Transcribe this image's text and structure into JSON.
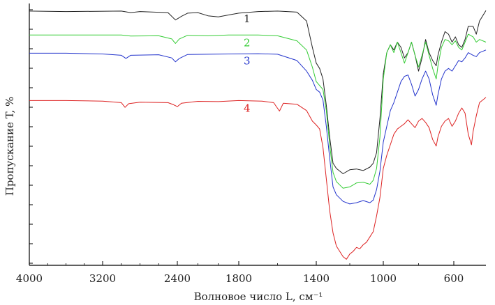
{
  "chart_data": {
    "type": "line",
    "xlabel": "Волновое число L, см⁻¹",
    "ylabel": "Пропускание T, %",
    "x_ticks": [
      "4000",
      "3200",
      "2400",
      "1800",
      "1400",
      "1000",
      "600"
    ],
    "x_tick_values": [
      4000,
      3200,
      2400,
      1800,
      1400,
      1000,
      600
    ],
    "xlim": [
      4000,
      400
    ],
    "ylim": [
      0,
      100
    ],
    "grid": false,
    "legend": "inline labels",
    "series": [
      {
        "name": "1",
        "color": "#222222",
        "points": [
          [
            4000,
            95.8
          ],
          [
            3600,
            95.6
          ],
          [
            3000,
            95.8
          ],
          [
            2900,
            95.2
          ],
          [
            2800,
            95.6
          ],
          [
            2500,
            95.2
          ],
          [
            2420,
            92.4
          ],
          [
            2360,
            93.8
          ],
          [
            2300,
            95.0
          ],
          [
            2200,
            95.2
          ],
          [
            2100,
            94.0
          ],
          [
            2000,
            93.6
          ],
          [
            1900,
            94.3
          ],
          [
            1800,
            95.0
          ],
          [
            1700,
            95.6
          ],
          [
            1600,
            95.8
          ],
          [
            1500,
            95.4
          ],
          [
            1450,
            92.0
          ],
          [
            1420,
            82.0
          ],
          [
            1400,
            76.0
          ],
          [
            1380,
            74.0
          ],
          [
            1360,
            70.0
          ],
          [
            1340,
            60.0
          ],
          [
            1320,
            48.0
          ],
          [
            1300,
            38.0
          ],
          [
            1280,
            36.0
          ],
          [
            1240,
            34.0
          ],
          [
            1200,
            35.5
          ],
          [
            1160,
            35.8
          ],
          [
            1120,
            35.2
          ],
          [
            1080,
            36.5
          ],
          [
            1060,
            38.0
          ],
          [
            1040,
            42.0
          ],
          [
            1020,
            55.0
          ],
          [
            1000,
            72.0
          ],
          [
            980,
            80.0
          ],
          [
            960,
            83.0
          ],
          [
            940,
            81.0
          ],
          [
            920,
            84.0
          ],
          [
            900,
            82.0
          ],
          [
            880,
            78.0
          ],
          [
            860,
            80.0
          ],
          [
            840,
            84.0
          ],
          [
            820,
            79.0
          ],
          [
            800,
            73.0
          ],
          [
            780,
            78.0
          ],
          [
            760,
            85.0
          ],
          [
            740,
            80.0
          ],
          [
            720,
            77.0
          ],
          [
            700,
            75.0
          ],
          [
            690,
            79.0
          ],
          [
            670,
            84.0
          ],
          [
            650,
            88.0
          ],
          [
            630,
            87.0
          ],
          [
            610,
            84.0
          ],
          [
            590,
            86.0
          ],
          [
            570,
            83.0
          ],
          [
            550,
            82.0
          ],
          [
            530,
            85.0
          ],
          [
            510,
            90.0
          ],
          [
            480,
            90.0
          ],
          [
            460,
            87.0
          ],
          [
            440,
            92.0
          ],
          [
            420,
            94.0
          ],
          [
            400,
            96.0
          ]
        ]
      },
      {
        "name": "2",
        "color": "#33cc33",
        "points": [
          [
            4000,
            86.7
          ],
          [
            3600,
            86.7
          ],
          [
            3000,
            86.7
          ],
          [
            2900,
            86.3
          ],
          [
            2600,
            86.4
          ],
          [
            2460,
            85.2
          ],
          [
            2420,
            83.5
          ],
          [
            2380,
            85.2
          ],
          [
            2300,
            86.6
          ],
          [
            2100,
            86.4
          ],
          [
            1900,
            86.7
          ],
          [
            1700,
            86.7
          ],
          [
            1600,
            86.4
          ],
          [
            1500,
            84.5
          ],
          [
            1450,
            81.0
          ],
          [
            1420,
            74.5
          ],
          [
            1400,
            69.0
          ],
          [
            1380,
            67.5
          ],
          [
            1360,
            66.0
          ],
          [
            1340,
            58.0
          ],
          [
            1320,
            45.0
          ],
          [
            1300,
            34.5
          ],
          [
            1280,
            31.0
          ],
          [
            1240,
            28.5
          ],
          [
            1200,
            29.0
          ],
          [
            1160,
            30.5
          ],
          [
            1120,
            30.8
          ],
          [
            1080,
            30.0
          ],
          [
            1060,
            31.5
          ],
          [
            1040,
            36.0
          ],
          [
            1020,
            48.0
          ],
          [
            1000,
            70.0
          ],
          [
            980,
            80.0
          ],
          [
            960,
            83.0
          ],
          [
            940,
            80.0
          ],
          [
            920,
            84.0
          ],
          [
            900,
            80.0
          ],
          [
            880,
            76.0
          ],
          [
            860,
            80.0
          ],
          [
            840,
            84.0
          ],
          [
            820,
            79.0
          ],
          [
            800,
            74.5
          ],
          [
            780,
            79.0
          ],
          [
            760,
            84.0
          ],
          [
            740,
            79.0
          ],
          [
            720,
            74.0
          ],
          [
            700,
            70.0
          ],
          [
            690,
            75.0
          ],
          [
            670,
            82.0
          ],
          [
            650,
            85.0
          ],
          [
            630,
            84.5
          ],
          [
            610,
            83.0
          ],
          [
            590,
            84.5
          ],
          [
            570,
            82.0
          ],
          [
            550,
            81.0
          ],
          [
            530,
            84.0
          ],
          [
            510,
            87.0
          ],
          [
            480,
            86.0
          ],
          [
            460,
            84.0
          ],
          [
            440,
            85.0
          ],
          [
            400,
            84.0
          ]
        ]
      },
      {
        "name": "3",
        "color": "#2233cc",
        "points": [
          [
            4000,
            79.8
          ],
          [
            3600,
            79.8
          ],
          [
            3200,
            79.5
          ],
          [
            3000,
            79.0
          ],
          [
            2950,
            77.8
          ],
          [
            2900,
            79.0
          ],
          [
            2600,
            79.2
          ],
          [
            2460,
            78.0
          ],
          [
            2420,
            76.5
          ],
          [
            2380,
            77.8
          ],
          [
            2300,
            79.3
          ],
          [
            2100,
            79.4
          ],
          [
            1900,
            79.5
          ],
          [
            1700,
            79.6
          ],
          [
            1600,
            79.4
          ],
          [
            1500,
            77.0
          ],
          [
            1450,
            73.0
          ],
          [
            1420,
            69.5
          ],
          [
            1400,
            66.0
          ],
          [
            1380,
            65.0
          ],
          [
            1360,
            62.0
          ],
          [
            1340,
            52.0
          ],
          [
            1320,
            40.0
          ],
          [
            1300,
            29.0
          ],
          [
            1280,
            26.0
          ],
          [
            1240,
            23.5
          ],
          [
            1200,
            22.5
          ],
          [
            1160,
            23.0
          ],
          [
            1120,
            23.8
          ],
          [
            1080,
            23.0
          ],
          [
            1060,
            24.0
          ],
          [
            1040,
            28.0
          ],
          [
            1020,
            35.0
          ],
          [
            1000,
            46.0
          ],
          [
            980,
            52.0
          ],
          [
            960,
            58.0
          ],
          [
            940,
            61.0
          ],
          [
            920,
            65.0
          ],
          [
            900,
            69.0
          ],
          [
            880,
            71.0
          ],
          [
            860,
            71.5
          ],
          [
            840,
            68.0
          ],
          [
            820,
            63.5
          ],
          [
            800,
            66.0
          ],
          [
            780,
            70.0
          ],
          [
            760,
            73.0
          ],
          [
            740,
            70.0
          ],
          [
            720,
            64.0
          ],
          [
            700,
            60.0
          ],
          [
            690,
            64.0
          ],
          [
            670,
            70.0
          ],
          [
            650,
            73.0
          ],
          [
            630,
            74.0
          ],
          [
            610,
            73.0
          ],
          [
            590,
            75.0
          ],
          [
            570,
            77.0
          ],
          [
            550,
            76.5
          ],
          [
            530,
            78.0
          ],
          [
            510,
            80.0
          ],
          [
            480,
            79.0
          ],
          [
            460,
            78.5
          ],
          [
            440,
            80.0
          ],
          [
            400,
            81.0
          ]
        ]
      },
      {
        "name": "4",
        "color": "#dd2222",
        "points": [
          [
            4000,
            61.8
          ],
          [
            3600,
            61.8
          ],
          [
            3200,
            61.6
          ],
          [
            3000,
            61.0
          ],
          [
            2960,
            59.2
          ],
          [
            2920,
            60.6
          ],
          [
            2800,
            61.2
          ],
          [
            2500,
            61.0
          ],
          [
            2440,
            60.2
          ],
          [
            2400,
            59.5
          ],
          [
            2360,
            60.8
          ],
          [
            2200,
            61.5
          ],
          [
            2000,
            61.4
          ],
          [
            1800,
            61.8
          ],
          [
            1680,
            61.6
          ],
          [
            1620,
            61.0
          ],
          [
            1590,
            57.8
          ],
          [
            1570,
            60.8
          ],
          [
            1500,
            60.4
          ],
          [
            1450,
            58.0
          ],
          [
            1420,
            54.0
          ],
          [
            1400,
            52.5
          ],
          [
            1380,
            51.0
          ],
          [
            1360,
            44.0
          ],
          [
            1340,
            32.0
          ],
          [
            1320,
            20.0
          ],
          [
            1300,
            11.5
          ],
          [
            1280,
            6.5
          ],
          [
            1240,
            2.5
          ],
          [
            1220,
            1.5
          ],
          [
            1200,
            3.5
          ],
          [
            1180,
            4.5
          ],
          [
            1160,
            6.0
          ],
          [
            1140,
            5.5
          ],
          [
            1120,
            7.0
          ],
          [
            1100,
            8.0
          ],
          [
            1080,
            10.0
          ],
          [
            1060,
            12.0
          ],
          [
            1040,
            18.0
          ],
          [
            1020,
            25.0
          ],
          [
            1000,
            36.0
          ],
          [
            980,
            41.0
          ],
          [
            960,
            45.0
          ],
          [
            940,
            49.0
          ],
          [
            920,
            51.0
          ],
          [
            900,
            52.0
          ],
          [
            880,
            53.0
          ],
          [
            860,
            54.5
          ],
          [
            840,
            53.0
          ],
          [
            820,
            51.5
          ],
          [
            800,
            54.0
          ],
          [
            780,
            55.0
          ],
          [
            760,
            53.5
          ],
          [
            740,
            51.5
          ],
          [
            720,
            47.0
          ],
          [
            700,
            44.5
          ],
          [
            690,
            48.0
          ],
          [
            670,
            52.0
          ],
          [
            650,
            54.0
          ],
          [
            630,
            55.0
          ],
          [
            610,
            52.0
          ],
          [
            590,
            54.0
          ],
          [
            570,
            57.0
          ],
          [
            550,
            59.0
          ],
          [
            530,
            57.0
          ],
          [
            510,
            49.0
          ],
          [
            490,
            45.0
          ],
          [
            480,
            50.0
          ],
          [
            460,
            56.0
          ],
          [
            440,
            61.0
          ],
          [
            420,
            62.0
          ],
          [
            400,
            63.0
          ]
        ]
      }
    ]
  }
}
